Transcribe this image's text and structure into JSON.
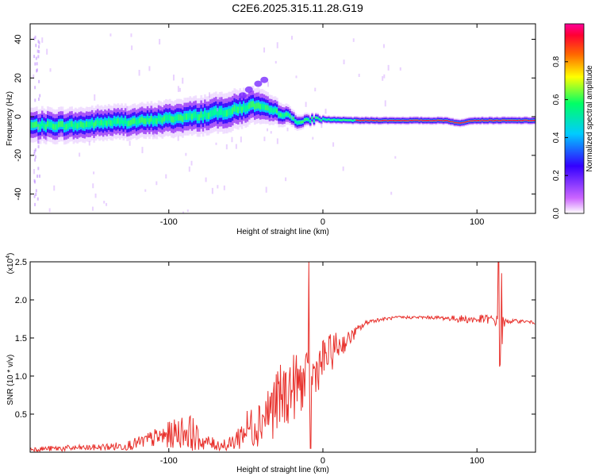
{
  "title": "C2E6.2025.315.11.28.G19",
  "chart_data": [
    {
      "type": "heatmap",
      "xlabel": "Height of straight line (km)",
      "ylabel": "Frequency (Hz)",
      "xlim": [
        -190,
        138
      ],
      "ylim": [
        -50,
        48
      ],
      "x_ticks": [
        -100,
        0,
        100
      ],
      "x_tick_labels": [
        "-100",
        "0",
        "100"
      ],
      "y_ticks": [
        -40,
        -20,
        0,
        20,
        40
      ],
      "y_tick_labels": [
        "-40",
        "-20",
        "0",
        "20",
        "40"
      ],
      "colorbar": {
        "label": "Normalized spectral amplitude",
        "range": [
          0,
          1
        ],
        "ticks": [
          0.0,
          0.2,
          0.4,
          0.6,
          0.8
        ],
        "tick_labels": [
          "0.0",
          "0.2",
          "0.4",
          "0.6",
          "0.8"
        ],
        "colors": [
          "#ffffff",
          "#cc66ff",
          "#3300ff",
          "#00ccff",
          "#00ff66",
          "#ffff00",
          "#ff6600",
          "#ff0033",
          "#ff0099"
        ]
      },
      "centerline": {
        "x": [
          -190,
          -160,
          -140,
          -120,
          -100,
          -80,
          -60,
          -45,
          -38,
          -25,
          -15,
          -5,
          0,
          20,
          60,
          80,
          88,
          95,
          110,
          138
        ],
        "y": [
          -4.5,
          -4.5,
          -3,
          -2.5,
          -1,
          0.5,
          3,
          6,
          4,
          1,
          -3,
          -1,
          -1.5,
          -2,
          -2,
          -2,
          -3.5,
          -2,
          -2,
          -2
        ]
      },
      "band_halfwidth": {
        "x": [
          -190,
          -120,
          -60,
          -40,
          -20,
          0,
          138
        ],
        "y": [
          6,
          6,
          7,
          6,
          3,
          1.5,
          1.5
        ]
      }
    },
    {
      "type": "line",
      "xlabel": "Height of straight line (km)",
      "ylabel": "SNR (10 * v/v)",
      "y_scale_label": "(x10",
      "y_scale_exponent": "4",
      "y_scale_suffix": ")",
      "xlim": [
        -190,
        138
      ],
      "ylim": [
        0,
        2.5
      ],
      "x_ticks": [
        -100,
        0,
        100
      ],
      "x_tick_labels": [
        "-100",
        "0",
        "100"
      ],
      "y_ticks": [
        0.5,
        1.0,
        1.5,
        2.0,
        2.5
      ],
      "y_tick_labels": [
        "0.5",
        "1.0",
        "1.5",
        "2.0",
        "2.5"
      ],
      "series": [
        {
          "color": "#e8322d",
          "x": [
            -190,
            -170,
            -150,
            -130,
            -120,
            -110,
            -100,
            -90,
            -85,
            -80,
            -70,
            -60,
            -55,
            -50,
            -45,
            -40,
            -35,
            -30,
            -25,
            -20,
            -15,
            -10,
            -8,
            -5,
            0,
            5,
            10,
            15,
            20,
            25,
            30,
            40,
            50,
            60,
            70,
            80,
            90,
            100,
            105,
            110,
            113,
            114,
            115,
            116,
            118,
            120,
            130,
            138
          ],
          "y": [
            0.04,
            0.05,
            0.06,
            0.08,
            0.12,
            0.18,
            0.22,
            0.28,
            0.25,
            0.15,
            0.1,
            0.1,
            0.2,
            0.3,
            0.35,
            0.45,
            0.55,
            0.65,
            0.75,
            0.85,
            0.9,
            0.95,
            1.0,
            1.05,
            1.2,
            1.3,
            1.4,
            1.45,
            1.55,
            1.65,
            1.72,
            1.75,
            1.77,
            1.77,
            1.77,
            1.76,
            1.75,
            1.74,
            1.75,
            1.74,
            1.72,
            1.45,
            1.2,
            1.55,
            1.7,
            1.72,
            1.72,
            1.7
          ],
          "noise": [
            0.03,
            0.04,
            0.04,
            0.06,
            0.08,
            0.12,
            0.18,
            0.22,
            0.25,
            0.12,
            0.08,
            0.1,
            0.18,
            0.25,
            0.3,
            0.35,
            0.4,
            0.45,
            0.45,
            0.45,
            0.4,
            0.35,
            0.3,
            0.3,
            0.3,
            0.25,
            0.2,
            0.12,
            0.08,
            0.05,
            0.03,
            0.02,
            0.02,
            0.02,
            0.02,
            0.03,
            0.05,
            0.06,
            0.06,
            0.06,
            0.08,
            0.4,
            0.5,
            0.3,
            0.05,
            0.03,
            0.02,
            0.02
          ]
        }
      ],
      "spikes": [
        {
          "x": -9,
          "y": 2.5
        },
        {
          "x": -8,
          "y": 0.05
        },
        {
          "x": 114,
          "y": 2.5
        },
        {
          "x": 115,
          "y": 1.15
        },
        {
          "x": 116,
          "y": 2.35
        }
      ]
    }
  ]
}
